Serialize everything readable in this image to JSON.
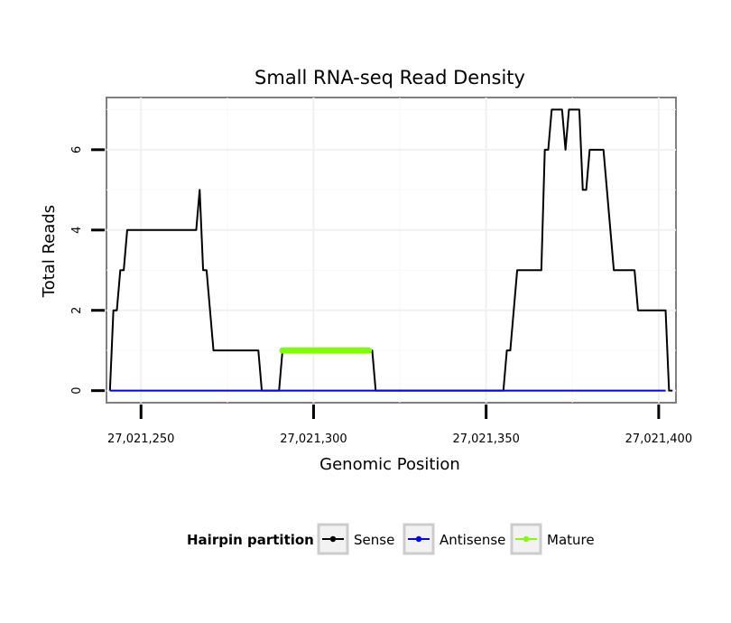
{
  "chart_data": {
    "type": "line",
    "title": "Small RNA-seq Read Density",
    "xlabel": "Genomic Position",
    "ylabel": "Total Reads",
    "xlim": [
      27021240,
      27021405
    ],
    "ylim": [
      -0.3,
      7.3
    ],
    "xticks": [
      27021250,
      27021300,
      27021350,
      27021400
    ],
    "xtick_labels": [
      "27,021,250",
      "27,021,300",
      "27,021,350",
      "27,021,400"
    ],
    "yticks": [
      0,
      2,
      4,
      6
    ],
    "ytick_labels": [
      "0",
      "2",
      "4",
      "6"
    ],
    "grid": true,
    "legend": {
      "title": "Hairpin partition",
      "position": "bottom",
      "entries": [
        "Sense",
        "Antisense",
        "Mature"
      ]
    },
    "series": [
      {
        "name": "Sense",
        "color": "#000000",
        "x": [
          27021241,
          27021242,
          27021243,
          27021244,
          27021245,
          27021246,
          27021256,
          27021257,
          27021266,
          27021267,
          27021268,
          27021269,
          27021270,
          27021271,
          27021276,
          27021284,
          27021285,
          27021290,
          27021291,
          27021317,
          27021318,
          27021319,
          27021355,
          27021356,
          27021357,
          27021358,
          27021359,
          27021360,
          27021366,
          27021367,
          27021368,
          27021369,
          27021370,
          27021372,
          27021373,
          27021374,
          27021375,
          27021376,
          27021377,
          27021378,
          27021379,
          27021380,
          27021381,
          27021384,
          27021385,
          27021386,
          27021387,
          27021393,
          27021394,
          27021402,
          27021403,
          27021404
        ],
        "values": [
          0,
          2,
          2,
          3,
          3,
          4,
          4,
          4,
          4,
          5,
          3,
          3,
          2,
          1,
          1,
          1,
          0,
          0,
          1,
          1,
          0,
          0,
          0,
          1,
          1,
          2,
          3,
          3,
          3,
          6,
          6,
          7,
          7,
          7,
          6,
          7,
          7,
          7,
          7,
          5,
          5,
          6,
          6,
          6,
          5,
          4,
          3,
          3,
          2,
          2,
          0,
          0
        ]
      },
      {
        "name": "Antisense",
        "color": "#0000ff",
        "x": [
          27021241,
          27021402
        ],
        "values": [
          0,
          0
        ]
      },
      {
        "name": "Mature",
        "color": "#7fff00",
        "x": [
          27021291,
          27021316
        ],
        "values": [
          1,
          1
        ]
      }
    ]
  }
}
